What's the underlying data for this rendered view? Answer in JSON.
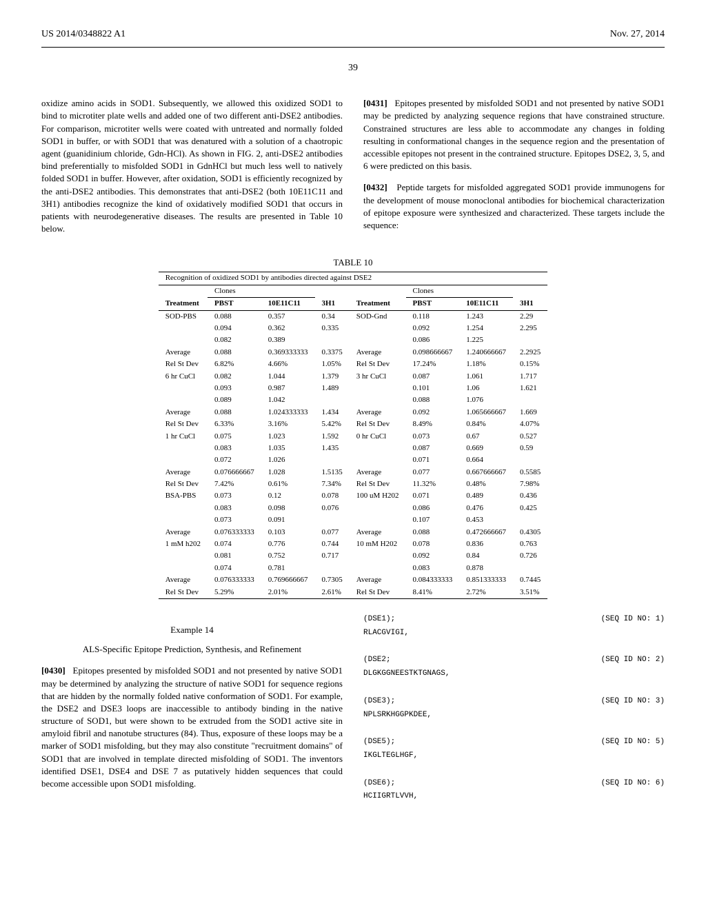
{
  "header": {
    "left": "US 2014/0348822 A1",
    "right": "Nov. 27, 2014"
  },
  "page_number": "39",
  "left_column_para": "oxidize amino acids in SOD1. Subsequently, we allowed this oxidized SOD1 to bind to microtiter plate wells and added one of two different anti-DSE2 antibodies. For comparison, microtiter wells were coated with untreated and normally folded SOD1 in buffer, or with SOD1 that was denatured with a solution of a chaotropic agent (guanidinium chloride, Gdn-HCl). As shown in FIG. 2, anti-DSE2 antibodies bind preferentially to misfolded SOD1 in GdnHCl but much less well to natively folded SOD1 in buffer. However, after oxidation, SOD1 is efficiently recognized by the anti-DSE2 antibodies. This demonstrates that anti-DSE2 (both 10E11C11 and 3H1) antibodies recognize the kind of oxidatively modified SOD1 that occurs in patients with neurodegenerative diseases. The results are presented in Table 10 below.",
  "right_column_para1_num": "[0431]",
  "right_column_para1": "Epitopes presented by misfolded SOD1 and not presented by native SOD1 may be predicted by analyzing sequence regions that have constrained structure. Constrained structures are less able to accommodate any changes in folding resulting in conformational changes in the sequence region and the presentation of accessible epitopes not present in the contrained structure. Epitopes DSE2, 3, 5, and 6 were predicted on this basis.",
  "right_column_para2_num": "[0432]",
  "right_column_para2": "Peptide targets for misfolded aggregated SOD1 provide immunogens for the development of mouse monoclonal antibodies for biochemical characterization of epitope exposure were synthesized and characterized. These targets include the sequence:",
  "table": {
    "label": "TABLE 10",
    "caption": "Recognition of oxidized SOD1 by antibodies directed against DSE2",
    "clone_label": "Clones",
    "col_headers_left": [
      "Treatment",
      "PBST",
      "10E11C11",
      "3H1"
    ],
    "col_headers_right": [
      "Treatment",
      "PBST",
      "10E11C11",
      "3H1"
    ],
    "rows": [
      [
        "SOD-PBS",
        "0.088",
        "0.357",
        "0.34",
        "SOD-Gnd",
        "0.118",
        "1.243",
        "2.29"
      ],
      [
        "",
        "0.094",
        "0.362",
        "0.335",
        "",
        "0.092",
        "1.254",
        "2.295"
      ],
      [
        "",
        "0.082",
        "0.389",
        "",
        "",
        "0.086",
        "1.225",
        ""
      ],
      [
        "Average",
        "0.088",
        "0.369333333",
        "0.3375",
        "Average",
        "0.098666667",
        "1.240666667",
        "2.2925"
      ],
      [
        "Rel St Dev",
        "6.82%",
        "4.66%",
        "1.05%",
        "Rel St Dev",
        "17.24%",
        "1.18%",
        "0.15%"
      ],
      [
        "6 hr CuCl",
        "0.082",
        "1.044",
        "1.379",
        "3 hr CuCl",
        "0.087",
        "1.061",
        "1.717"
      ],
      [
        "",
        "0.093",
        "0.987",
        "1.489",
        "",
        "0.101",
        "1.06",
        "1.621"
      ],
      [
        "",
        "0.089",
        "1.042",
        "",
        "",
        "0.088",
        "1.076",
        ""
      ],
      [
        "Average",
        "0.088",
        "1.024333333",
        "1.434",
        "Average",
        "0.092",
        "1.065666667",
        "1.669"
      ],
      [
        "Rel St Dev",
        "6.33%",
        "3.16%",
        "5.42%",
        "Rel St Dev",
        "8.49%",
        "0.84%",
        "4.07%"
      ],
      [
        "1 hr CuCl",
        "0.075",
        "1.023",
        "1.592",
        "0 hr CuCl",
        "0.073",
        "0.67",
        "0.527"
      ],
      [
        "",
        "0.083",
        "1.035",
        "1.435",
        "",
        "0.087",
        "0.669",
        "0.59"
      ],
      [
        "",
        "0.072",
        "1.026",
        "",
        "",
        "0.071",
        "0.664",
        ""
      ],
      [
        "Average",
        "0.076666667",
        "1.028",
        "1.5135",
        "Average",
        "0.077",
        "0.667666667",
        "0.5585"
      ],
      [
        "Rel St Dev",
        "7.42%",
        "0.61%",
        "7.34%",
        "Rel St Dev",
        "11.32%",
        "0.48%",
        "7.98%"
      ],
      [
        "BSA-PBS",
        "0.073",
        "0.12",
        "0.078",
        "100 uM H202",
        "0.071",
        "0.489",
        "0.436"
      ],
      [
        "",
        "0.083",
        "0.098",
        "0.076",
        "",
        "0.086",
        "0.476",
        "0.425"
      ],
      [
        "",
        "0.073",
        "0.091",
        "",
        "",
        "0.107",
        "0.453",
        ""
      ],
      [
        "Average",
        "0.076333333",
        "0.103",
        "0.077",
        "Average",
        "0.088",
        "0.472666667",
        "0.4305"
      ],
      [
        "1 mM h202",
        "0.074",
        "0.776",
        "0.744",
        "10 mM H202",
        "0.078",
        "0.836",
        "0.763"
      ],
      [
        "",
        "0.081",
        "0.752",
        "0.717",
        "",
        "0.092",
        "0.84",
        "0.726"
      ],
      [
        "",
        "0.074",
        "0.781",
        "",
        "",
        "0.083",
        "0.878",
        ""
      ],
      [
        "Average",
        "0.076333333",
        "0.769666667",
        "0.7305",
        "Average",
        "0.084333333",
        "0.851333333",
        "0.7445"
      ],
      [
        "Rel St Dev",
        "5.29%",
        "2.01%",
        "2.61%",
        "Rel St Dev",
        "8.41%",
        "2.72%",
        "3.51%"
      ]
    ]
  },
  "example": {
    "number": "Example 14",
    "title": "ALS-Specific Epitope Prediction, Synthesis, and Refinement"
  },
  "para_0430_num": "[0430]",
  "para_0430": "Epitopes presented by misfolded SOD1 and not presented by native SOD1 may be determined by analyzing the structure of native SOD1 for sequence regions that are hidden by the normally folded native conformation of SOD1. For example, the DSE2 and DSE3 loops are inaccessible to antibody binding in the native structure of SOD1, but were shown to be extruded from the SOD1 active site in amyloid fibril and nanotube structures (84). Thus, exposure of these loops may be a marker of SOD1 misfolding, but they may also constitute \"recruitment domains\" of SOD1 that are involved in template directed misfolding of SOD1. The inventors identified DSE1, DSE4 and DSE 7 as putatively hidden sequences that could become accessible upon SOD1 misfolding.",
  "sequences": [
    {
      "name": "(DSE1);",
      "seq": "RLACGVIGI,",
      "id": "(SEQ ID NO: 1)"
    },
    {
      "name": "(DSE2;",
      "seq": "DLGKGGNEESTKTGNAGS,",
      "id": "(SEQ ID NO: 2)"
    },
    {
      "name": "(DSE3);",
      "seq": "NPLSRKHGGPKDEE,",
      "id": "(SEQ ID NO: 3)"
    },
    {
      "name": "(DSE5);",
      "seq": "IKGLTEGLHGF,",
      "id": "(SEQ ID NO: 5)"
    },
    {
      "name": "(DSE6);",
      "seq": "HCIIGRTLVVH,",
      "id": "(SEQ ID NO: 6)"
    }
  ]
}
